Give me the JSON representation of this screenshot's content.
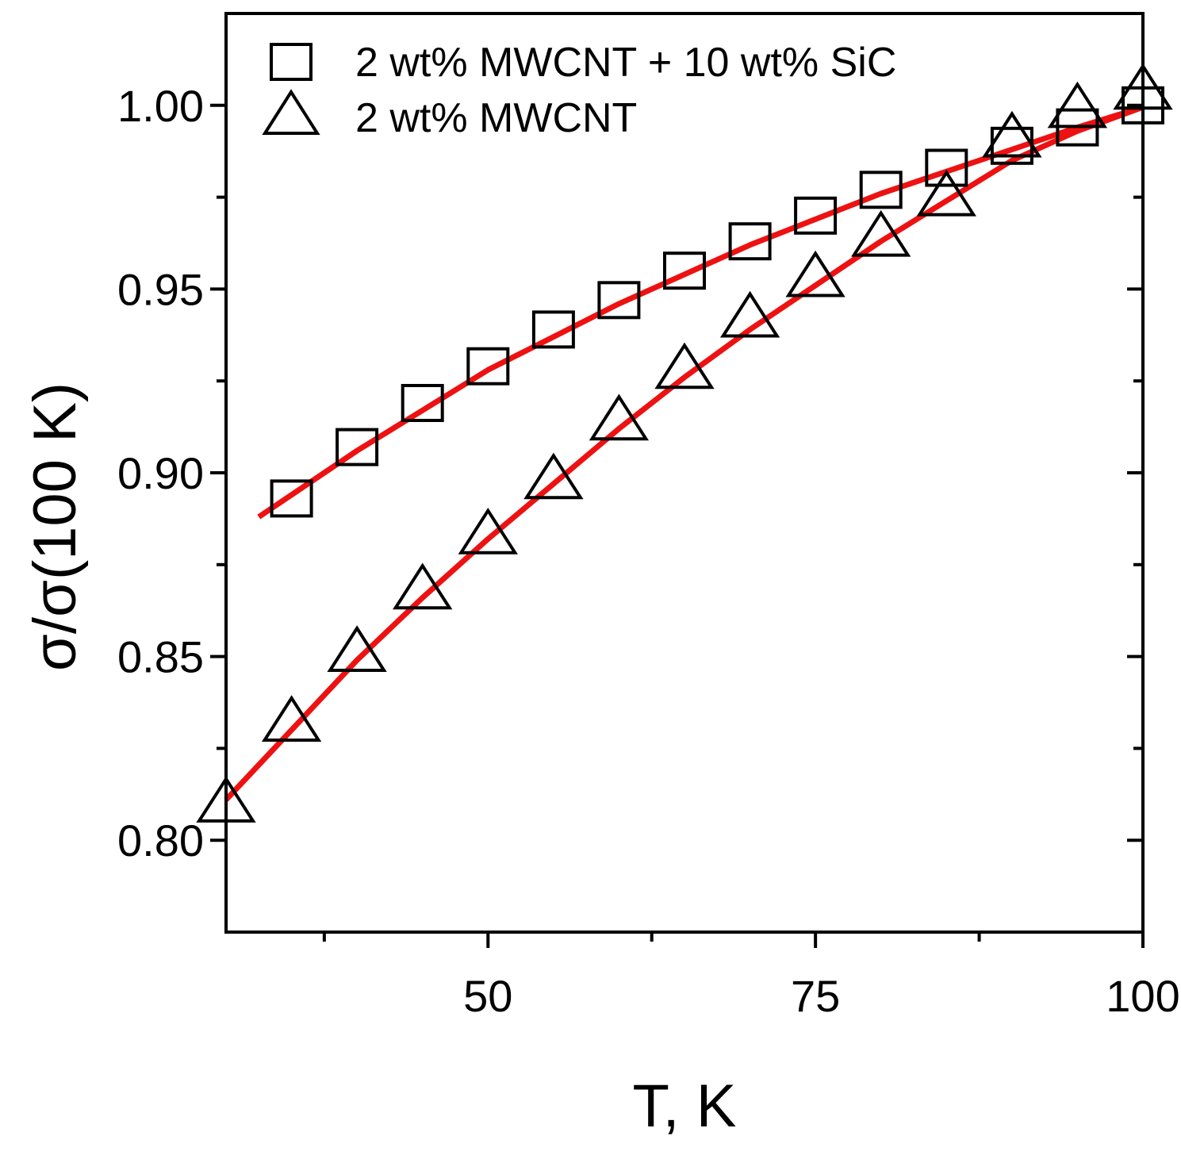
{
  "chart_data": {
    "type": "scatter",
    "title": "",
    "xlabel": "T, K",
    "ylabel": "σ/σ(100 K)",
    "xlim": [
      30,
      100
    ],
    "ylim": [
      0.775,
      1.025
    ],
    "x_ticks": [
      50,
      75,
      100
    ],
    "x_tick_labels": [
      "50",
      "75",
      "100"
    ],
    "x_minor_ticks": [
      37.5,
      62.5,
      87.5
    ],
    "y_ticks": [
      0.8,
      0.85,
      0.9,
      0.95,
      1.0
    ],
    "y_tick_labels": [
      "0.80",
      "0.85",
      "0.90",
      "0.95",
      "1.00"
    ],
    "y_minor_ticks": [
      0.825,
      0.875,
      0.925,
      0.975
    ],
    "grid": false,
    "legend_position": "top-left",
    "series": [
      {
        "name": "2 wt% MWCNT + 10 wt% SiC",
        "marker": "square",
        "x": [
          35,
          40,
          45,
          50,
          55,
          60,
          65,
          70,
          75,
          80,
          85,
          90,
          95,
          100
        ],
        "y": [
          0.893,
          0.907,
          0.919,
          0.929,
          0.939,
          0.947,
          0.955,
          0.963,
          0.97,
          0.977,
          0.983,
          0.989,
          0.994,
          1.0
        ],
        "fit": {
          "color": "#ee1111",
          "x": [
            32.5,
            35,
            40,
            45,
            50,
            55,
            60,
            65,
            70,
            75,
            80,
            85,
            90,
            95,
            100
          ],
          "y": [
            0.888,
            0.894,
            0.906,
            0.917,
            0.928,
            0.937,
            0.946,
            0.954,
            0.962,
            0.969,
            0.976,
            0.982,
            0.988,
            0.994,
            0.9995
          ]
        }
      },
      {
        "name": "2 wt% MWCNT",
        "marker": "triangle",
        "x": [
          30,
          35,
          40,
          45,
          50,
          55,
          60,
          65,
          70,
          75,
          80,
          85,
          90,
          95,
          100
        ],
        "y": [
          0.81,
          0.832,
          0.851,
          0.868,
          0.883,
          0.898,
          0.914,
          0.928,
          0.942,
          0.953,
          0.964,
          0.975,
          0.991,
          0.999,
          1.004
        ],
        "fit": {
          "color": "#ee1111",
          "x": [
            30,
            35,
            40,
            45,
            50,
            55,
            60,
            65,
            70,
            75,
            80,
            85,
            90,
            95,
            100
          ],
          "y": [
            0.811,
            0.83,
            0.849,
            0.866,
            0.882,
            0.897,
            0.912,
            0.926,
            0.939,
            0.951,
            0.963,
            0.974,
            0.985,
            0.993,
            0.9995
          ]
        }
      }
    ]
  }
}
